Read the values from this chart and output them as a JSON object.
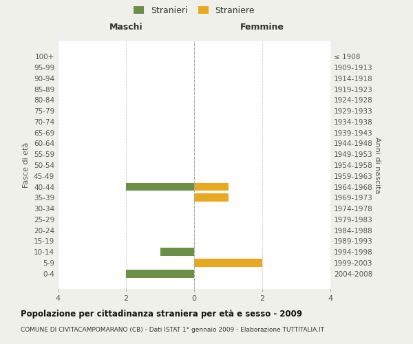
{
  "age_groups": [
    "100+",
    "95-99",
    "90-94",
    "85-89",
    "80-84",
    "75-79",
    "70-74",
    "65-69",
    "60-64",
    "55-59",
    "50-54",
    "45-49",
    "40-44",
    "35-39",
    "30-34",
    "25-29",
    "20-24",
    "15-19",
    "10-14",
    "5-9",
    "0-4"
  ],
  "birth_years": [
    "≤ 1908",
    "1909-1913",
    "1914-1918",
    "1919-1923",
    "1924-1928",
    "1929-1933",
    "1934-1938",
    "1939-1943",
    "1944-1948",
    "1949-1953",
    "1954-1958",
    "1959-1963",
    "1964-1968",
    "1969-1973",
    "1974-1978",
    "1979-1983",
    "1984-1988",
    "1989-1993",
    "1994-1998",
    "1999-2003",
    "2004-2008"
  ],
  "males": [
    0,
    0,
    0,
    0,
    0,
    0,
    0,
    0,
    0,
    0,
    0,
    0,
    2,
    0,
    0,
    0,
    0,
    0,
    1,
    0,
    2
  ],
  "females": [
    0,
    0,
    0,
    0,
    0,
    0,
    0,
    0,
    0,
    0,
    0,
    0,
    1,
    1,
    0,
    0,
    0,
    0,
    0,
    2,
    0
  ],
  "male_color": "#6b8f47",
  "female_color": "#e8a820",
  "legend_male": "Stranieri",
  "legend_female": "Straniere",
  "title_left": "Maschi",
  "title_right": "Femmine",
  "ylabel_left": "Fasce di età",
  "ylabel_right": "Anni di nascita",
  "xlim": 4,
  "title": "Popolazione per cittadinanza straniera per età e sesso - 2009",
  "subtitle": "COMUNE DI CIVITACAMPOMARANO (CB) - Dati ISTAT 1° gennaio 2009 - Elaborazione TUTTITALIA.IT",
  "bg_color": "#f0f0eb",
  "plot_bg_color": "#ffffff",
  "grid_color": "#d0d0d0",
  "bar_height": 0.75
}
